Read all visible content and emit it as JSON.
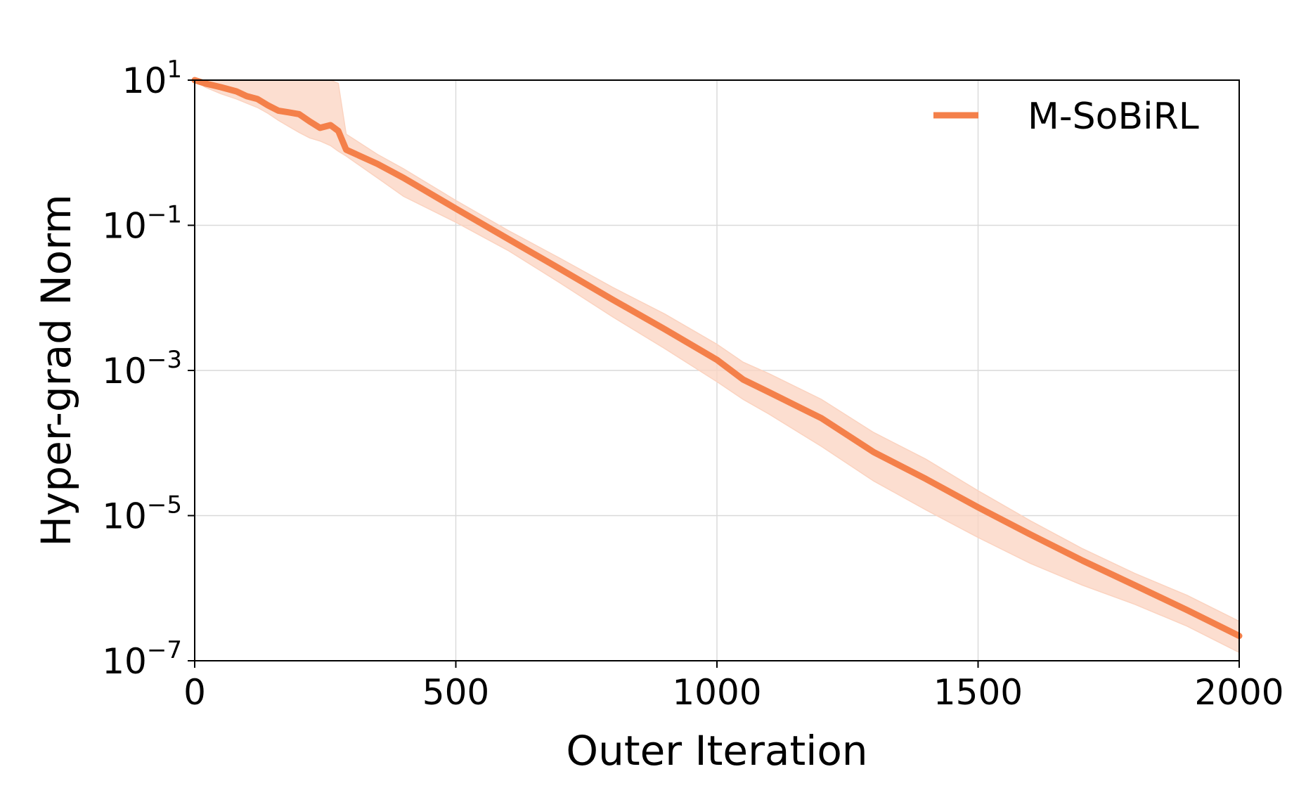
{
  "chart_data": {
    "type": "line",
    "xlabel": "Outer Iteration",
    "ylabel": "Hyper-grad Norm",
    "xlim": [
      0,
      2000
    ],
    "ylim": [
      1e-07,
      10
    ],
    "yscale": "log",
    "grid": true,
    "legend_position": "top-right",
    "x_ticks": [
      {
        "value": 0,
        "label": "0"
      },
      {
        "value": 500,
        "label": "500"
      },
      {
        "value": 1000,
        "label": "1000"
      },
      {
        "value": 1500,
        "label": "1500"
      },
      {
        "value": 2000,
        "label": "2000"
      }
    ],
    "y_ticks": [
      {
        "value": 10,
        "base": "10",
        "exp": "1"
      },
      {
        "value": 0.1,
        "base": "10",
        "exp": "−1"
      },
      {
        "value": 0.001,
        "base": "10",
        "exp": "−3"
      },
      {
        "value": 1e-05,
        "base": "10",
        "exp": "−5"
      },
      {
        "value": 1e-07,
        "base": "10",
        "exp": "−7"
      }
    ],
    "series": [
      {
        "name": "M-SoBiRL",
        "color": "#f4804a",
        "band_color": "#fbd3c0",
        "x": [
          0,
          20,
          50,
          80,
          100,
          120,
          140,
          160,
          180,
          200,
          220,
          240,
          260,
          275,
          290,
          350,
          400,
          500,
          600,
          700,
          800,
          900,
          1000,
          1050,
          1100,
          1200,
          1300,
          1400,
          1500,
          1600,
          1700,
          1800,
          1900,
          2000
        ],
        "y": [
          10,
          9,
          8,
          7,
          6,
          5.5,
          4.5,
          3.8,
          3.6,
          3.4,
          2.7,
          2.2,
          2.4,
          2,
          1.1,
          0.7,
          0.45,
          0.17,
          0.065,
          0.025,
          0.0095,
          0.0037,
          0.0014,
          0.00075,
          0.0005,
          0.00022,
          7.5e-05,
          3.2e-05,
          1.3e-05,
          5.5e-06,
          2.4e-06,
          1.1e-06,
          5e-07,
          2.2e-07
        ],
        "lower": [
          10,
          8,
          6.5,
          5.5,
          4.8,
          4.2,
          3.5,
          2.8,
          2.3,
          1.9,
          1.6,
          1.45,
          1.25,
          1.05,
          0.9,
          0.45,
          0.25,
          0.11,
          0.045,
          0.016,
          0.0055,
          0.002,
          0.0007,
          0.0004,
          0.00025,
          9e-05,
          3e-05,
          1.2e-05,
          5e-06,
          2.2e-06,
          1.1e-06,
          6e-07,
          3e-07,
          1.3e-07
        ],
        "upper": [
          10,
          10,
          10,
          10,
          10,
          10,
          10,
          10,
          10,
          10,
          10,
          10,
          10,
          9,
          1.8,
          0.95,
          0.6,
          0.22,
          0.085,
          0.035,
          0.014,
          0.006,
          0.0023,
          0.0013,
          0.0009,
          0.0004,
          0.00014,
          6e-05,
          2.2e-05,
          8.5e-06,
          3.5e-06,
          1.6e-06,
          8e-07,
          3.5e-07
        ]
      }
    ]
  }
}
